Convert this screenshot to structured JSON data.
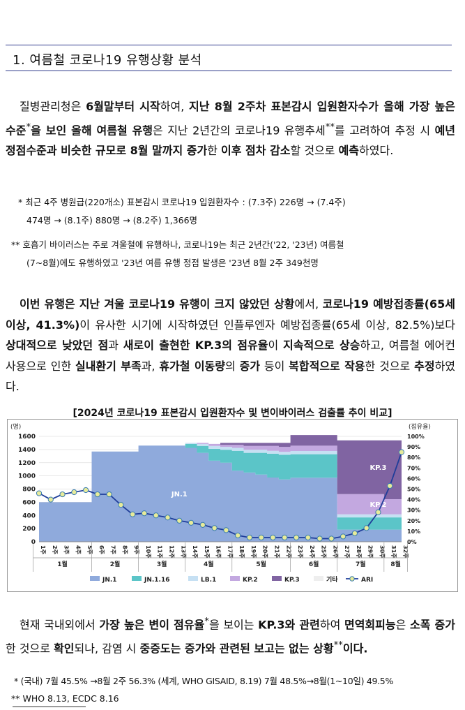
{
  "section_title": "1. 여름철 코로나19 유행상황 분석",
  "para1": {
    "s1": "질병관리청은 ",
    "b1": "6월말부터 시작",
    "s2": "하여, ",
    "b2": "지난 8월 2주차 표본감시 입원환자수가 올해 가장 높은 수준",
    "sup1": "*",
    "b3": "을 보인 올해 여름철 유행",
    "s3": "은 지난 2년간의 코로나19 유행추세",
    "sup2": "**",
    "s4": "를 고려하여 추정 시 ",
    "b4": "예년 정점수준과 비슷한 규모로 8월 말까지 증가",
    "s5": "한 ",
    "b5": "이후 점차 감소",
    "s6": "할 것으로 ",
    "b6": "예측",
    "s7": "하였다."
  },
  "fn1": {
    "line1": "* 최근 4주 병원급(220개소) 표본감시 코로나19 입원환자수 : (7.3주) 226명 → (7.4주)",
    "line2": "474명 → (8.1주) 880명    → (8.2주) 1,366명"
  },
  "fn2": {
    "line1": "** 호흡기 바이러스는 주로 겨울철에 유행하나, 코로나19는 최근 2년간('22, '23년) 여름철",
    "line2": "(7~8월)에도 유행하였고 '23년 여름 유행 정점 발생은 '23년 8월 2주 349천명"
  },
  "para2": {
    "b1": "이번 유행은 지난 겨울 코로나19 유행이 크지 않았던 상황",
    "s1": "에서, ",
    "b2": "코로나19 예방접종률(65세 이상, 41.3%)",
    "s2": "이 유사한 시기에 시작하였던 인플루엔자 예방접종률(65세 이상, 82.5%)보다 ",
    "b3": "상대적으로 낮았던 점",
    "s3": "과 ",
    "b4": "새로이 출현한 KP.3의 점유율",
    "s4": "이 ",
    "b5": "지속적으로 상승",
    "s5": "하고, 여름철 에어컨 사용으로 인한 ",
    "b6": "실내환기 부족",
    "s6": "과, ",
    "b7": "휴가철 이동량",
    "s7": "의 ",
    "b8": "증가",
    "s8": " 등이 ",
    "b9": "복합적으로 작용",
    "s9": "한 것으로 ",
    "b10": "추정",
    "s10": "하였다."
  },
  "chart_caption": "[2024년 코로나19 표본감시 입원환자수 및 변이바이러스 검출률 추이 비교]",
  "chart_data": {
    "type": "area",
    "left_axis_label": "(명)",
    "right_axis_label": "(점유율)",
    "left_ticks": [
      "1600",
      "1400",
      "1200",
      "1000",
      "800",
      "600",
      "400",
      "200",
      "0"
    ],
    "right_ticks": [
      "100%",
      "90%",
      "80%",
      "70%",
      "60%",
      "50%",
      "40%",
      "30%",
      "20%",
      "10%",
      "0%"
    ],
    "x_labels": [
      "1주",
      "2주",
      "3주",
      "4주",
      "5주",
      "6주",
      "7주",
      "8주",
      "9주",
      "10주",
      "11주",
      "12주",
      "13주",
      "14주",
      "15주",
      "16주",
      "17주",
      "18주",
      "19주",
      "20주",
      "21주",
      "22주",
      "23주",
      "24주",
      "25주",
      "26주",
      "27주",
      "28주",
      "29주",
      "30주",
      "31주",
      "32주"
    ],
    "months": [
      "1월",
      "2월",
      "3월",
      "4월",
      "5월",
      "6월",
      "7월",
      "8월"
    ],
    "month_spans": [
      [
        1,
        5
      ],
      [
        6,
        9
      ],
      [
        10,
        13
      ],
      [
        14,
        17
      ],
      [
        18,
        22
      ],
      [
        23,
        26
      ],
      [
        27,
        30
      ],
      [
        31,
        32
      ]
    ],
    "total_max": 1600,
    "week_totals": [
      600,
      600,
      600,
      600,
      600,
      1370,
      1370,
      1370,
      1370,
      1460,
      1460,
      1460,
      1460,
      1500,
      1500,
      1500,
      1500,
      1500,
      1500,
      1500,
      1500,
      1500,
      1620,
      1620,
      1620,
      1620,
      1540,
      1540,
      1540,
      1540,
      1540,
      1540
    ],
    "series": [
      {
        "name": "JN.1",
        "color": "#8faadc",
        "share": [
          1,
          1,
          1,
          1,
          1,
          1,
          1,
          1,
          1,
          1,
          1,
          1,
          1,
          0.95,
          0.9,
          0.82,
          0.8,
          0.72,
          0.7,
          0.68,
          0.65,
          0.63,
          0.6,
          0.6,
          0.6,
          0.6,
          0.12,
          0.12,
          0.12,
          0.12,
          0.12,
          0.12
        ]
      },
      {
        "name": "JN.1.16",
        "color": "#5bc5c8",
        "share": [
          0,
          0,
          0,
          0,
          0,
          0,
          0,
          0,
          0,
          0,
          0,
          0,
          0,
          0.04,
          0.07,
          0.12,
          0.13,
          0.2,
          0.2,
          0.22,
          0.24,
          0.25,
          0.22,
          0.22,
          0.22,
          0.22,
          0.12,
          0.12,
          0.12,
          0.12,
          0.12,
          0.12
        ]
      },
      {
        "name": "LB.1",
        "color": "#c6e0f3",
        "share": [
          0,
          0,
          0,
          0,
          0,
          0,
          0,
          0,
          0,
          0,
          0,
          0,
          0,
          0.01,
          0.02,
          0.03,
          0.03,
          0.03,
          0.03,
          0.03,
          0.03,
          0.03,
          0.03,
          0.03,
          0.03,
          0.03,
          0.03,
          0.03,
          0.03,
          0.03,
          0.03,
          0.03
        ]
      },
      {
        "name": "KP.2",
        "color": "#c3a8e0",
        "share": [
          0,
          0,
          0,
          0,
          0,
          0,
          0,
          0,
          0,
          0,
          0,
          0,
          0,
          0,
          0.01,
          0.02,
          0.02,
          0.03,
          0.04,
          0.04,
          0.05,
          0.05,
          0.05,
          0.05,
          0.05,
          0.05,
          0.2,
          0.2,
          0.2,
          0.2,
          0.15,
          0.15
        ]
      },
      {
        "name": "KP.3",
        "color": "#8064a2",
        "share": [
          0,
          0,
          0,
          0,
          0,
          0,
          0,
          0,
          0,
          0,
          0,
          0,
          0,
          0,
          0,
          0,
          0.02,
          0.02,
          0.03,
          0.03,
          0.03,
          0.04,
          0.1,
          0.1,
          0.1,
          0.1,
          0.53,
          0.53,
          0.53,
          0.53,
          0.58,
          0.58
        ]
      },
      {
        "name": "기타",
        "color": "#eeeeee",
        "share": [
          0,
          0,
          0,
          0,
          0,
          0,
          0,
          0,
          0,
          0,
          0,
          0,
          0,
          0,
          0,
          0,
          0,
          0,
          0,
          0,
          0,
          0,
          0,
          0,
          0,
          0,
          0,
          0,
          0,
          0,
          0,
          0
        ]
      }
    ],
    "ari_name": "ARI",
    "ari_color": "#1f3d99",
    "ari_marker_fill": "#e8eb9a",
    "ari_max_pct": 100,
    "ari": [
      46,
      40,
      45,
      47,
      49,
      45,
      45,
      35,
      26,
      27,
      25,
      23,
      20,
      18,
      16,
      13,
      11,
      6,
      4,
      4,
      4,
      4,
      4,
      4,
      3,
      3,
      5,
      8,
      13,
      28,
      53,
      85
    ],
    "area_labels": [
      {
        "text": "JN.1",
        "series": "JN.1"
      },
      {
        "text": "KP.3",
        "series": "KP.3"
      },
      {
        "text": "KP.2",
        "series": "KP.2"
      }
    ],
    "legend": [
      "JN.1",
      "JN.1.16",
      "LB.1",
      "KP.2",
      "KP.3",
      "기타",
      "ARI"
    ]
  },
  "para3": {
    "s1": "현재 국내외에서 ",
    "b1": "가장 높은 변이 점유율",
    "sup1": "*",
    "s2": "을 보이는 ",
    "b2": "KP.3와 관련",
    "s3": "하여 ",
    "b3": "면역회피능",
    "s4": "은 ",
    "b4": "소폭 증가",
    "s5": "한 것으로 ",
    "b5": "확인",
    "s6": "되나, 감염 시 ",
    "b6": "중증도는 증가와 관련된 보고는 없는 상황",
    "sup2": "**",
    "b7": "이다."
  },
  "fn3": "* (국내) 7월 45.5% →8월 2주 56.3% (세계, WHO GISAID, 8.19) 7월 48.5%→8월(1~10일) 49.5%",
  "fn4": "** WHO 8.13, ECDC 8.16"
}
